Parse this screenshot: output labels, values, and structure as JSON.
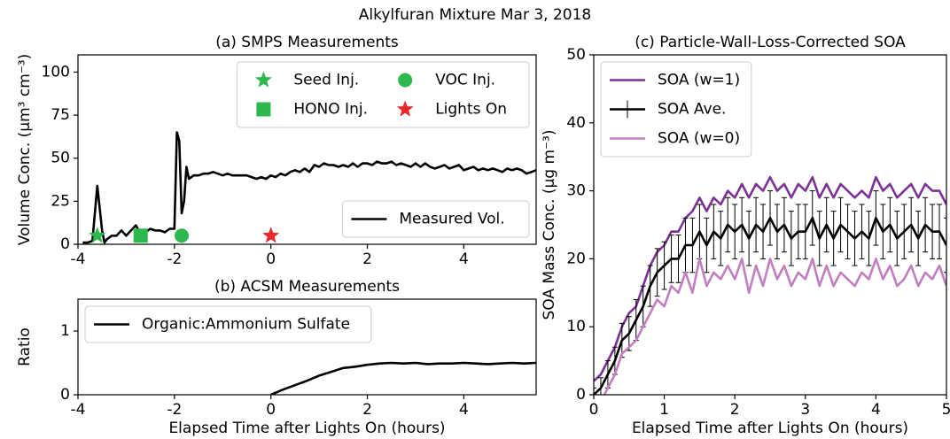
{
  "title": "Alkylfuran Mixture Mar 3, 2018",
  "chart_data": [
    {
      "type": "line",
      "title": "(a) SMPS Measurements",
      "ylabel": "Volume Conc. (μm³ cm⁻³)",
      "xlim": [
        -4,
        5.5
      ],
      "xticks": [
        -4,
        -2,
        0,
        2,
        4
      ],
      "ylim": [
        0,
        110
      ],
      "yticks": [
        0,
        25,
        50,
        75,
        100
      ],
      "legend": "lower right",
      "series": [
        {
          "name": "Measured Vol.",
          "color": "#000000",
          "x": [
            -3.9,
            -3.8,
            -3.7,
            -3.6,
            -3.5,
            -3.45,
            -3.4,
            -3.3,
            -3.2,
            -3.1,
            -3.0,
            -2.9,
            -2.8,
            -2.7,
            -2.6,
            -2.5,
            -2.4,
            -2.3,
            -2.2,
            -2.1,
            -2.0,
            -1.95,
            -1.9,
            -1.85,
            -1.8,
            -1.75,
            -1.7,
            -1.6,
            -1.5,
            -1.4,
            -1.3,
            -1.2,
            -1.1,
            -1.0,
            -0.9,
            -0.8,
            -0.7,
            -0.6,
            -0.5,
            -0.4,
            -0.3,
            -0.2,
            -0.1,
            0,
            0.1,
            0.2,
            0.3,
            0.4,
            0.5,
            0.6,
            0.7,
            0.8,
            0.9,
            1.0,
            1.1,
            1.2,
            1.3,
            1.4,
            1.5,
            1.6,
            1.7,
            1.8,
            1.9,
            2.0,
            2.1,
            2.2,
            2.3,
            2.4,
            2.5,
            2.6,
            2.7,
            2.8,
            2.9,
            3.0,
            3.1,
            3.2,
            3.3,
            3.4,
            3.5,
            3.6,
            3.7,
            3.8,
            3.9,
            4.0,
            4.1,
            4.2,
            4.3,
            4.4,
            4.5,
            4.6,
            4.7,
            4.8,
            4.9,
            5.0,
            5.1,
            5.2,
            5.3,
            5.4,
            5.5
          ],
          "values": [
            1,
            1,
            2,
            34,
            8,
            1,
            3,
            5,
            5,
            8,
            5,
            8,
            11,
            6,
            7,
            9,
            8,
            8,
            7,
            9,
            9,
            65,
            60,
            18,
            25,
            45,
            38,
            40,
            40,
            41,
            41,
            42,
            41,
            40,
            41,
            40,
            40,
            40,
            40,
            39,
            38,
            39,
            38,
            40,
            39,
            41,
            40,
            42,
            43,
            42,
            44,
            42,
            46,
            45,
            47,
            46,
            46,
            45,
            46,
            45,
            47,
            45,
            47,
            47,
            46,
            48,
            47,
            47,
            48,
            46,
            47,
            46,
            45,
            47,
            45,
            47,
            45,
            44,
            45,
            46,
            44,
            45,
            46,
            43,
            44,
            45,
            43,
            44,
            43,
            44,
            43,
            42,
            44,
            43,
            44,
            43,
            41,
            42,
            43
          ]
        }
      ],
      "events_legend": "upper right",
      "events": [
        {
          "name": "Seed Inj.",
          "color": "#2db84d",
          "marker": "star",
          "x": -3.6,
          "y": 5
        },
        {
          "name": "HONO Inj.",
          "color": "#2db84d",
          "marker": "square",
          "x": -2.7,
          "y": 5
        },
        {
          "name": "VOC Inj.",
          "color": "#2db84d",
          "marker": "circle",
          "x": -1.85,
          "y": 5
        },
        {
          "name": "Lights On",
          "color": "#e8282b",
          "marker": "star",
          "x": 0,
          "y": 5
        }
      ]
    },
    {
      "type": "line",
      "title": "(b) ACSM Measurements",
      "ylabel": "Ratio",
      "xlabel": "Elapsed Time after Lights On (hours)",
      "xlim": [
        -4,
        5.5
      ],
      "xticks": [
        -4,
        -2,
        0,
        2,
        4
      ],
      "ylim": [
        0,
        1.5
      ],
      "yticks": [
        0,
        1
      ],
      "legend": "upper left",
      "series": [
        {
          "name": "Organic:Ammonium Sulfate",
          "color": "#000000",
          "x": [
            0,
            0.25,
            0.5,
            0.75,
            1,
            1.25,
            1.5,
            1.75,
            2,
            2.25,
            2.5,
            2.75,
            3,
            3.25,
            3.5,
            3.75,
            4,
            4.25,
            4.5,
            4.75,
            5,
            5.25,
            5.5
          ],
          "values": [
            0,
            0.08,
            0.15,
            0.22,
            0.3,
            0.36,
            0.42,
            0.44,
            0.47,
            0.49,
            0.5,
            0.49,
            0.5,
            0.48,
            0.49,
            0.49,
            0.5,
            0.49,
            0.48,
            0.49,
            0.5,
            0.49,
            0.5
          ]
        }
      ]
    },
    {
      "type": "line",
      "title": "(c) Particle-Wall-Loss-Corrected SOA",
      "ylabel": "SOA Mass Conc. (μg m⁻³)",
      "xlabel": "Elapsed Time after Lights On (hours)",
      "xlim": [
        0,
        5
      ],
      "xticks": [
        0,
        1,
        2,
        3,
        4,
        5
      ],
      "ylim": [
        0,
        50
      ],
      "yticks": [
        0,
        10,
        20,
        30,
        40,
        50
      ],
      "legend": "upper left",
      "series": [
        {
          "name": "SOA (w=1)",
          "color": "#7b3294",
          "x": [
            0,
            0.1,
            0.2,
            0.3,
            0.4,
            0.5,
            0.6,
            0.7,
            0.8,
            0.9,
            1.0,
            1.1,
            1.2,
            1.3,
            1.4,
            1.5,
            1.6,
            1.7,
            1.8,
            1.9,
            2.0,
            2.1,
            2.2,
            2.3,
            2.4,
            2.5,
            2.6,
            2.7,
            2.8,
            2.9,
            3.0,
            3.1,
            3.2,
            3.3,
            3.4,
            3.5,
            3.6,
            3.7,
            3.8,
            3.9,
            4.0,
            4.1,
            4.2,
            4.3,
            4.4,
            4.5,
            4.6,
            4.7,
            4.8,
            4.9,
            5.0
          ],
          "values": [
            2,
            3,
            5,
            7,
            10,
            12,
            13,
            16,
            19,
            21,
            22,
            24,
            24,
            26,
            27,
            29,
            27,
            29,
            28,
            30,
            29,
            31,
            29,
            31,
            30,
            32,
            30,
            31,
            29,
            31,
            30,
            32,
            29,
            31,
            29,
            31,
            30,
            29,
            30,
            29,
            32,
            30,
            31,
            29,
            30,
            31,
            29,
            31,
            30,
            30,
            28
          ]
        },
        {
          "name": "SOA Ave.",
          "color": "#000000",
          "x": [
            0,
            0.1,
            0.2,
            0.3,
            0.4,
            0.5,
            0.6,
            0.7,
            0.8,
            0.9,
            1.0,
            1.1,
            1.2,
            1.3,
            1.4,
            1.5,
            1.6,
            1.7,
            1.8,
            1.9,
            2.0,
            2.1,
            2.2,
            2.3,
            2.4,
            2.5,
            2.6,
            2.7,
            2.8,
            2.9,
            3.0,
            3.1,
            3.2,
            3.3,
            3.4,
            3.5,
            3.6,
            3.7,
            3.8,
            3.9,
            4.0,
            4.1,
            4.2,
            4.3,
            4.4,
            4.5,
            4.6,
            4.7,
            4.8,
            4.9,
            5.0
          ],
          "values": [
            0,
            1,
            3,
            5,
            8,
            9,
            11,
            13,
            16,
            18,
            19,
            20,
            20,
            22,
            22,
            24,
            22,
            24,
            23,
            25,
            24,
            25,
            23,
            25,
            24,
            26,
            24,
            25,
            23,
            24,
            24,
            26,
            23,
            25,
            23,
            25,
            24,
            23,
            24,
            23,
            26,
            24,
            25,
            23,
            24,
            25,
            23,
            25,
            24,
            24,
            22
          ],
          "errors": [
            1,
            1.5,
            2,
            2,
            2.5,
            2.5,
            3,
            3,
            3,
            3.5,
            3.5,
            3.5,
            3.5,
            4,
            4,
            4,
            4,
            4,
            4,
            4,
            4,
            4,
            4,
            4,
            4,
            4,
            4,
            4,
            4,
            4,
            4,
            4,
            4,
            4,
            4,
            4,
            4,
            4,
            4,
            4,
            4,
            4,
            4,
            4,
            4,
            4,
            4,
            4,
            4,
            4,
            4
          ]
        },
        {
          "name": "SOA (w=0)",
          "color": "#c27fc0",
          "x": [
            0,
            0.1,
            0.2,
            0.3,
            0.4,
            0.5,
            0.6,
            0.7,
            0.8,
            0.9,
            1.0,
            1.1,
            1.2,
            1.3,
            1.4,
            1.5,
            1.6,
            1.7,
            1.8,
            1.9,
            2.0,
            2.1,
            2.2,
            2.3,
            2.4,
            2.5,
            2.6,
            2.7,
            2.8,
            2.9,
            3.0,
            3.1,
            3.2,
            3.3,
            3.4,
            3.5,
            3.6,
            3.7,
            3.8,
            3.9,
            4.0,
            4.1,
            4.2,
            4.3,
            4.4,
            4.5,
            4.6,
            4.7,
            4.8,
            4.9,
            5.0
          ],
          "values": [
            -2,
            -1,
            1,
            3,
            6,
            7,
            8,
            10,
            12,
            14,
            13,
            16,
            15,
            18,
            15,
            20,
            16,
            18,
            17,
            19,
            17,
            20,
            15,
            19,
            16,
            20,
            17,
            19,
            16,
            18,
            17,
            20,
            16,
            19,
            16,
            18,
            17,
            16,
            18,
            17,
            20,
            17,
            19,
            16,
            17,
            19,
            16,
            18,
            17,
            19,
            16
          ]
        }
      ]
    }
  ]
}
